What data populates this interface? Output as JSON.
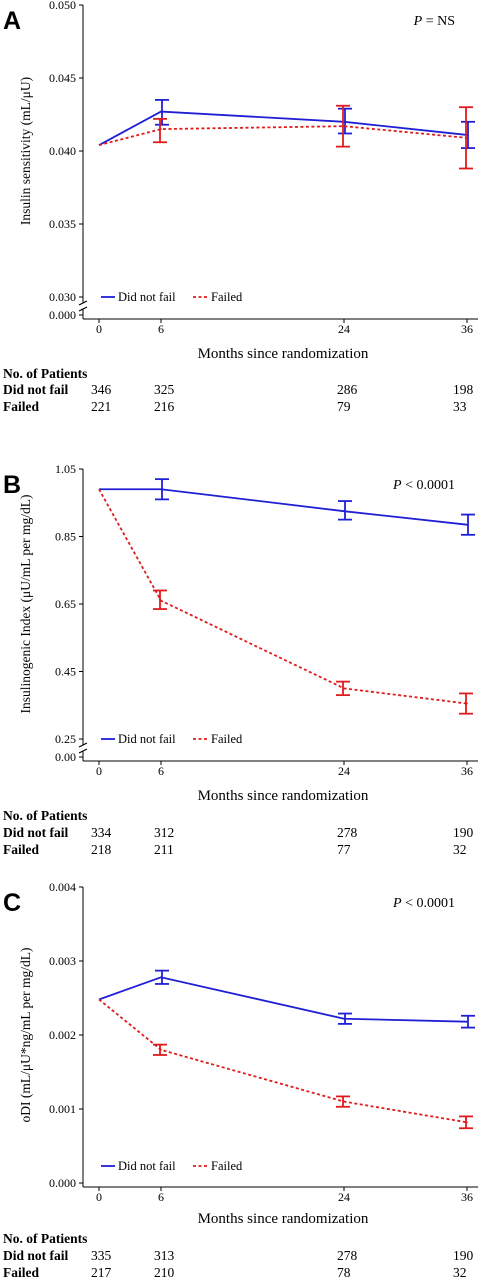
{
  "chart_data": [
    {
      "type": "line",
      "panel_label": "A",
      "p_value": {
        "italic": "P",
        "rest": " = NS"
      },
      "ylabel": "Insulin sensitivity (mL/μU)",
      "xlabel": "Months since randomization",
      "ylim": [
        0.03,
        0.05
      ],
      "yticks": [
        "0.030",
        "0.035",
        "0.040",
        "0.045",
        "0.050"
      ],
      "ytick_values": [
        0.03,
        0.035,
        0.04,
        0.045,
        0.05
      ],
      "y_zero_label": "0.000",
      "x": [
        0,
        6,
        24,
        36
      ],
      "xticks": [
        "0",
        "6",
        "24",
        "36"
      ],
      "series": [
        {
          "name": "Did not fail",
          "color": "#1f1fd6",
          "dash": "solid",
          "values": [
            0.0404,
            0.0427,
            0.042,
            0.0411
          ],
          "err_low": [
            0.0404,
            0.0418,
            0.0412,
            0.0402
          ],
          "err_high": [
            0.0404,
            0.0435,
            0.0429,
            0.042
          ]
        },
        {
          "name": "Failed",
          "color": "#e01b1b",
          "dash": "dashed",
          "values": [
            0.0404,
            0.0415,
            0.0417,
            0.0409
          ],
          "err_low": [
            0.0404,
            0.0406,
            0.0403,
            0.0388
          ],
          "err_high": [
            0.0404,
            0.0422,
            0.0431,
            0.043
          ]
        }
      ],
      "legend_placement": "bottom-left",
      "table": {
        "title": "No. of Patients",
        "rows": [
          {
            "label": "Did not fail",
            "counts": [
              "346",
              "325",
              "286",
              "198"
            ]
          },
          {
            "label": "Failed",
            "counts": [
              "221",
              "216",
              "79",
              "33"
            ]
          }
        ]
      }
    },
    {
      "type": "line",
      "panel_label": "B",
      "p_value": {
        "italic": "P",
        "rest": " < 0.0001"
      },
      "ylabel": "Insulinogenic Index (μU/mL per mg/dL)",
      "xlabel": "Months since randomization",
      "ylim": [
        0.25,
        1.05
      ],
      "yticks": [
        "0.25",
        "0.45",
        "0.65",
        "0.85",
        "1.05"
      ],
      "ytick_values": [
        0.25,
        0.45,
        0.65,
        0.85,
        1.05
      ],
      "y_zero_label": "0.00",
      "x": [
        0,
        6,
        24,
        36
      ],
      "xticks": [
        "0",
        "6",
        "24",
        "36"
      ],
      "series": [
        {
          "name": "Did not fail",
          "color": "#1f1fd6",
          "dash": "solid",
          "values": [
            0.99,
            0.99,
            0.925,
            0.885
          ],
          "err_low": [
            0.99,
            0.96,
            0.9,
            0.855
          ],
          "err_high": [
            0.99,
            1.02,
            0.955,
            0.915
          ]
        },
        {
          "name": "Failed",
          "color": "#e01b1b",
          "dash": "dashed",
          "values": [
            0.99,
            0.66,
            0.4,
            0.355
          ],
          "err_low": [
            0.99,
            0.635,
            0.38,
            0.325
          ],
          "err_high": [
            0.99,
            0.69,
            0.42,
            0.385
          ]
        }
      ],
      "legend_placement": "bottom-left",
      "table": {
        "title": "No. of Patients",
        "rows": [
          {
            "label": "Did not fail",
            "counts": [
              "334",
              "312",
              "278",
              "190"
            ]
          },
          {
            "label": "Failed",
            "counts": [
              "218",
              "211",
              "77",
              "32"
            ]
          }
        ]
      }
    },
    {
      "type": "line",
      "panel_label": "C",
      "p_value": {
        "italic": "P",
        "rest": " < 0.0001"
      },
      "ylabel": "oDI (mL/μU*ng/mL per mg/dL)",
      "xlabel": "Months since randomization",
      "ylim": [
        0.0,
        0.004
      ],
      "yticks": [
        "0.000",
        "0.001",
        "0.002",
        "0.003",
        "0.004"
      ],
      "ytick_values": [
        0.0,
        0.001,
        0.002,
        0.003,
        0.004
      ],
      "x": [
        0,
        6,
        24,
        36
      ],
      "xticks": [
        "0",
        "6",
        "24",
        "36"
      ],
      "series": [
        {
          "name": "Did not fail",
          "color": "#1f1fd6",
          "dash": "solid",
          "values": [
            0.00248,
            0.00278,
            0.00222,
            0.00218
          ],
          "err_low": [
            0.00248,
            0.00269,
            0.00215,
            0.0021
          ],
          "err_high": [
            0.00248,
            0.00287,
            0.00229,
            0.00226
          ]
        },
        {
          "name": "Failed",
          "color": "#e01b1b",
          "dash": "dashed",
          "values": [
            0.00248,
            0.0018,
            0.0011,
            0.00082
          ],
          "err_low": [
            0.00248,
            0.00173,
            0.00103,
            0.00074
          ],
          "err_high": [
            0.00248,
            0.00187,
            0.00117,
            0.0009
          ]
        }
      ],
      "legend_placement": "bottom-left",
      "table": {
        "title": "No. of Patients",
        "rows": [
          {
            "label": "Did not fail",
            "counts": [
              "335",
              "313",
              "278",
              "190"
            ]
          },
          {
            "label": "Failed",
            "counts": [
              "217",
              "210",
              "78",
              "32"
            ]
          }
        ]
      }
    }
  ]
}
